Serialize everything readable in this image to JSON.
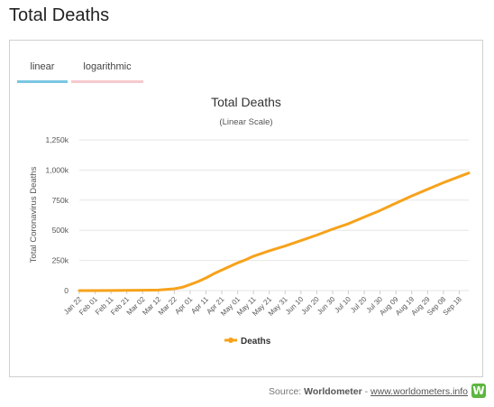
{
  "page": {
    "heading": "Total Deaths"
  },
  "tabs": [
    {
      "label": "linear"
    },
    {
      "label": "logarithmic"
    }
  ],
  "footer": {
    "source_prefix": "Source: ",
    "source_name": "Worldometer",
    "separator": " - ",
    "link_text": "www.worldometers.info",
    "logo_letter": "W"
  },
  "colors": {
    "series": "#f7a21b",
    "linear_tab": "#7ac7e3",
    "log_tab": "#f6c9cf",
    "logo": "#5cb63f"
  },
  "chart_data": {
    "type": "line",
    "title": "Total Deaths",
    "subtitle": "(Linear Scale)",
    "ylabel": "Total Coronavirus Deaths",
    "xlabel": "",
    "ylim": [
      0,
      1250000
    ],
    "y_ticks": [
      0,
      250000,
      500000,
      750000,
      1000000,
      1250000
    ],
    "y_tick_labels": [
      "0",
      "250k",
      "500k",
      "750k",
      "1,000k",
      "1,250k"
    ],
    "x_start": "2020-01-22",
    "x_end": "2020-09-24",
    "x_tick_labels": [
      "Jan 22",
      "Feb 01",
      "Feb 11",
      "Feb 21",
      "Mar 02",
      "Mar 12",
      "Mar 22",
      "Apr 01",
      "Apr 11",
      "Apr 21",
      "May 01",
      "May 11",
      "May 21",
      "May 31",
      "Jun 10",
      "Jun 20",
      "Jun 30",
      "Jul 10",
      "Jul 20",
      "Jul 30",
      "Aug 09",
      "Aug 19",
      "Aug 29",
      "Sep 08",
      "Sep 18"
    ],
    "legend": {
      "position": "bottom-center"
    },
    "grid": true,
    "series": [
      {
        "name": "Deaths",
        "x": [
          "2020-01-22",
          "2020-02-01",
          "2020-02-11",
          "2020-02-21",
          "2020-03-02",
          "2020-03-12",
          "2020-03-22",
          "2020-03-27",
          "2020-04-01",
          "2020-04-06",
          "2020-04-11",
          "2020-04-16",
          "2020-04-21",
          "2020-04-26",
          "2020-05-01",
          "2020-05-06",
          "2020-05-11",
          "2020-05-21",
          "2020-05-31",
          "2020-06-10",
          "2020-06-20",
          "2020-06-30",
          "2020-07-10",
          "2020-07-20",
          "2020-07-30",
          "2020-08-09",
          "2020-08-19",
          "2020-08-29",
          "2020-09-08",
          "2020-09-18",
          "2020-09-24"
        ],
        "values": [
          17,
          259,
          1018,
          2250,
          3085,
          4720,
          14600,
          27000,
          50000,
          75000,
          105000,
          140000,
          170000,
          200000,
          230000,
          255000,
          285000,
          330000,
          370000,
          415000,
          460000,
          510000,
          555000,
          610000,
          665000,
          725000,
          785000,
          840000,
          895000,
          945000,
          975000
        ]
      }
    ]
  }
}
